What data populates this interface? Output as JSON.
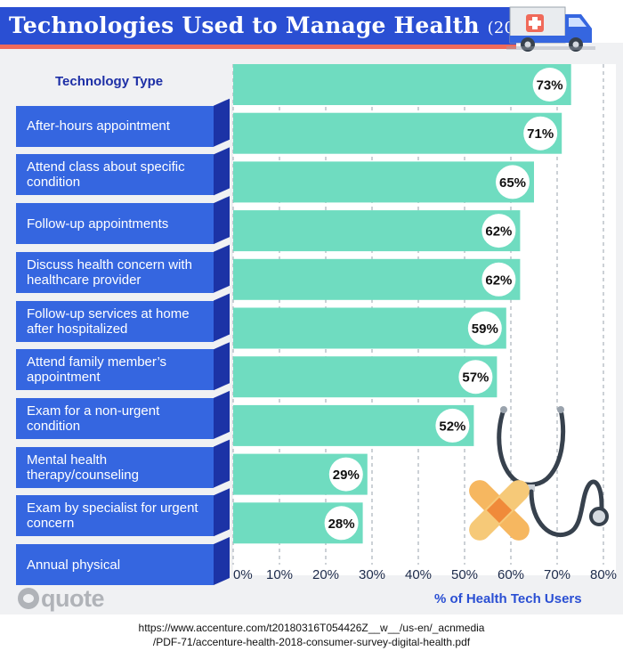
{
  "header": {
    "title": "Technologies Used to Manage Health",
    "title_year": "(2018)",
    "icon": "ambulance-icon"
  },
  "chart_data": {
    "type": "bar",
    "orientation": "horizontal",
    "title": "Technologies Used to Manage Health (2018)",
    "category_header": "Technology Type",
    "xlabel": "% of Health Tech Users",
    "xlim": [
      0,
      80
    ],
    "x_ticks": [
      "0%",
      "10%",
      "20%",
      "30%",
      "40%",
      "50%",
      "60%",
      "70%",
      "80%"
    ],
    "grid": true,
    "categories": [
      "After-hours appointment",
      "Attend class about specific condition",
      "Follow-up appointments",
      "Discuss health concern with healthcare provider",
      "Follow-up services at home after hospitalized",
      "Attend family member’s appointment",
      "Exam for a non-urgent condition",
      "Mental health therapy/counseling",
      "Exam by specialist for urgent concern",
      "Annual physical"
    ],
    "values": [
      73,
      71,
      65,
      62,
      62,
      59,
      57,
      52,
      29,
      28
    ],
    "value_labels": [
      "73%",
      "71%",
      "65%",
      "62%",
      "62%",
      "59%",
      "57%",
      "52%",
      "29%",
      "28%"
    ],
    "colors": {
      "bar": "#6fdcc0",
      "label_box": "#3566e0",
      "label_fold": "#1c33a6",
      "accent": "#f06a5a",
      "title_bg": "#2a4fd3"
    }
  },
  "branding": {
    "logo_text": "quote",
    "logo_icon": "quote-logo-icon",
    "decorations": [
      "stethoscope-icon",
      "bandage-icon"
    ]
  },
  "source": {
    "line1": "https://www.accenture.com/t20180316T054426Z__w__/us-en/_acnmedia",
    "line2": "/PDF-71/accenture-health-2018-consumer-survey-digital-health.pdf"
  }
}
